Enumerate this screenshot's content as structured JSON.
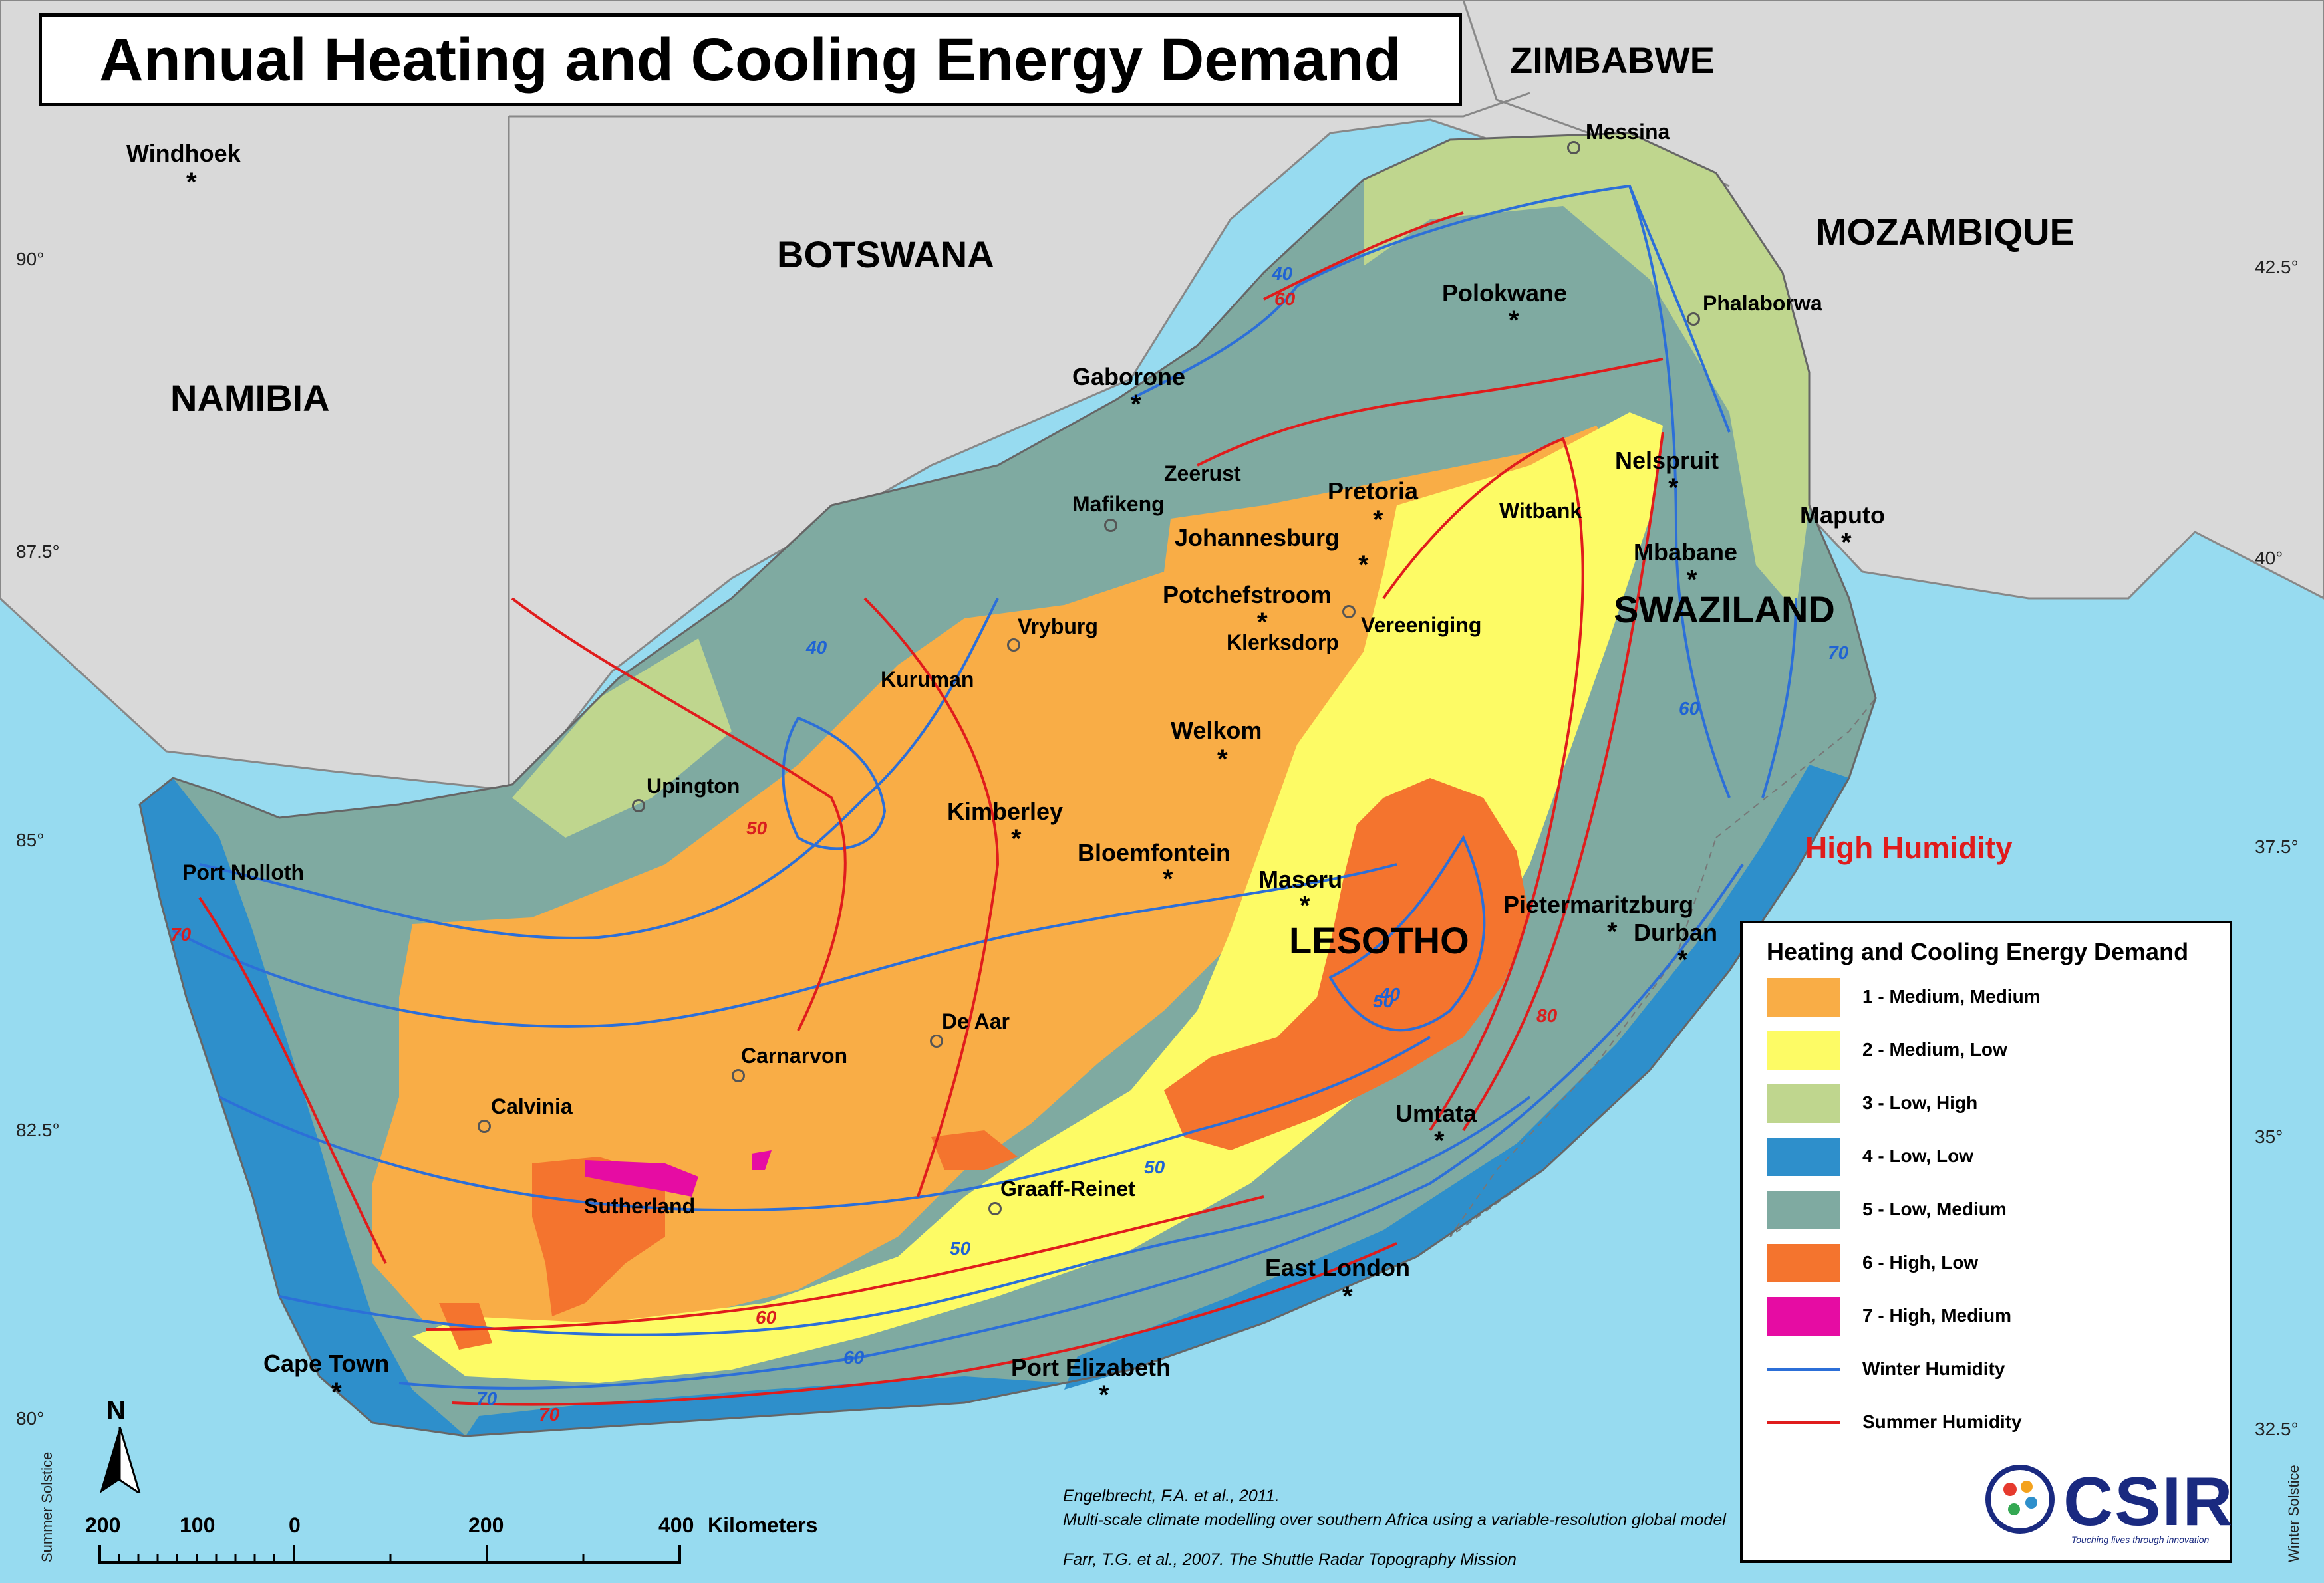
{
  "title": "Annual Heating and Cooling Energy Demand",
  "countries": {
    "zimbabwe": "ZIMBABWE",
    "botswana": "BOTSWANA",
    "namibia": "NAMIBIA",
    "mozambique": "MOZAMBIQUE",
    "lesotho": "LESOTHO",
    "swaziland": "SWAZILAND"
  },
  "cities": {
    "windhoek": "Windhoek",
    "messina": "Messina",
    "polokwane": "Polokwane",
    "phalaborwa": "Phalaborwa",
    "gaborone": "Gaborone",
    "zeerust": "Zeerust",
    "mafikeng": "Mafikeng",
    "pretoria": "Pretoria",
    "witbank": "Witbank",
    "nelspruit": "Nelspruit",
    "maputo": "Maputo",
    "johannesburg": "Johannesburg",
    "mbabane": "Mbabane",
    "potchefstroom": "Potchefstroom",
    "klerksdorp": "Klerksdorp",
    "vereeniging": "Vereeniging",
    "vryburg": "Vryburg",
    "kuruman": "Kuruman",
    "welkom": "Welkom",
    "upington": "Upington",
    "kimberley": "Kimberley",
    "bloemfontein": "Bloemfontein",
    "maseru": "Maseru",
    "pietermaritzburg": "Pietermaritzburg",
    "durban": "Durban",
    "port_nolloth": "Port Nolloth",
    "de_aar": "De Aar",
    "carnarvon": "Carnarvon",
    "calvinia": "Calvinia",
    "umtata": "Umtata",
    "sutherland": "Sutherland",
    "graaff_reinet": "Graaff-Reinet",
    "east_london": "East London",
    "cape_town": "Cape Town",
    "port_elizabeth": "Port Elizabeth"
  },
  "annotation_high_humidity": "High Humidity",
  "ticks": {
    "left": [
      "90°",
      "87.5°",
      "85°",
      "82.5°",
      "80°"
    ],
    "right": [
      "42.5°",
      "40°",
      "37.5°",
      "35°",
      "32.5°"
    ]
  },
  "side_labels": {
    "left": "Summer Solstice",
    "right": "Winter Solstice"
  },
  "isolines": {
    "winter": [
      "40",
      "40",
      "50",
      "50",
      "50",
      "60",
      "70",
      "60",
      "40",
      "70"
    ],
    "summer": [
      "60",
      "50",
      "70",
      "60",
      "70",
      "80"
    ]
  },
  "legend": {
    "title": "Heating and Cooling Energy Demand",
    "items": [
      {
        "label": "1 - Medium, Medium",
        "color": "#f9ad46"
      },
      {
        "label": "2 - Medium, Low",
        "color": "#fdfb65"
      },
      {
        "label": "3 - Low, High",
        "color": "#bfd68e"
      },
      {
        "label": "4 - Low, Low",
        "color": "#2e8fcb"
      },
      {
        "label": "5 - Low, Medium",
        "color": "#7faaa1"
      },
      {
        "label": "6 - High, Low",
        "color": "#f4742e"
      },
      {
        "label": "7 - High, Medium",
        "color": "#e60ca3"
      }
    ],
    "lines": [
      {
        "label": "Winter Humidity",
        "color": "#2c6fd8"
      },
      {
        "label": "Summer Humidity",
        "color": "#e01c1c"
      }
    ]
  },
  "scale_bar": {
    "north": "N",
    "labels": [
      "200",
      "100",
      "0",
      "200",
      "400"
    ],
    "unit": "Kilometers"
  },
  "credits": [
    "Engelbrecht, F.A. et al., 2011.",
    "Multi-scale climate modelling over southern Africa using a variable-resolution global model",
    "Farr, T.G. et al., 2007. The Shuttle Radar Topography Mission"
  ],
  "logo": {
    "text": "CSIR",
    "tagline": "Touching lives through innovation"
  }
}
